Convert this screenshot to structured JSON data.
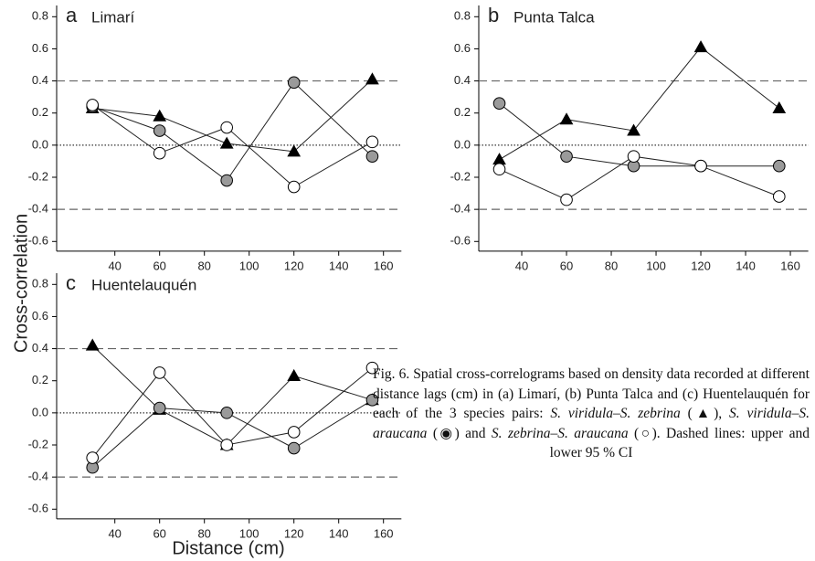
{
  "chart_data": [
    {
      "type": "line",
      "letter": "a",
      "title": "Limarí",
      "x": [
        30,
        60,
        90,
        120,
        155
      ],
      "xlim": [
        14,
        168
      ],
      "xticks": [
        40,
        60,
        80,
        100,
        120,
        140,
        160
      ],
      "ylim": [
        -0.66,
        0.87
      ],
      "yticks": [
        -0.6,
        -0.4,
        -0.2,
        {
          "value": 0,
          "label": "0.0"
        },
        0.2,
        0.4,
        0.6,
        0.8
      ],
      "hlines": [
        {
          "value": 0.4,
          "style": "dashed"
        },
        {
          "value": 0,
          "style": "dotted"
        },
        {
          "value": -0.4,
          "style": "dashed"
        }
      ],
      "series": [
        {
          "marker": "triangle",
          "color": "#000000",
          "values": [
            0.23,
            0.18,
            0.01,
            -0.04,
            0.41
          ]
        },
        {
          "marker": "circle",
          "color": "#9a9a9a",
          "values": [
            0.24,
            0.09,
            -0.22,
            0.39,
            -0.07
          ]
        },
        {
          "marker": "circle",
          "color": "#ffffff",
          "values": [
            0.25,
            -0.05,
            0.11,
            -0.26,
            0.02
          ]
        }
      ]
    },
    {
      "type": "line",
      "letter": "b",
      "title": "Punta Talca",
      "x": [
        30,
        60,
        90,
        120,
        155
      ],
      "xlim": [
        20.8,
        168
      ],
      "xticks": [
        40,
        60,
        80,
        100,
        120,
        140,
        160
      ],
      "ylim": [
        -0.66,
        0.87
      ],
      "yticks": [
        -0.6,
        -0.4,
        -0.2,
        {
          "value": 0,
          "label": "0.0"
        },
        0.2,
        0.4,
        0.6,
        0.8
      ],
      "hlines": [
        {
          "value": 0.4,
          "style": "dashed"
        },
        {
          "value": 0,
          "style": "dotted"
        },
        {
          "value": -0.4,
          "style": "dashed"
        }
      ],
      "series": [
        {
          "marker": "triangle",
          "color": "#000000",
          "values": [
            -0.09,
            0.16,
            0.09,
            0.61,
            0.23
          ]
        },
        {
          "marker": "circle",
          "color": "#9a9a9a",
          "values": [
            0.26,
            -0.07,
            -0.13,
            -0.13,
            -0.13
          ]
        },
        {
          "marker": "circle",
          "color": "#ffffff",
          "values": [
            -0.15,
            -0.34,
            -0.07,
            -0.13,
            -0.32
          ]
        }
      ]
    },
    {
      "type": "line",
      "letter": "c",
      "title": "Huentelauquén",
      "x": [
        30,
        60,
        90,
        120,
        155
      ],
      "xlim": [
        14,
        168
      ],
      "xticks": [
        40,
        60,
        80,
        100,
        120,
        140,
        160
      ],
      "ylim": [
        -0.66,
        0.87
      ],
      "yticks": [
        -0.6,
        -0.4,
        -0.2,
        {
          "value": 0,
          "label": "0.0"
        },
        0.2,
        0.4,
        0.6,
        0.8
      ],
      "hlines": [
        {
          "value": 0.4,
          "style": "dashed"
        },
        {
          "value": 0,
          "style": "dotted"
        },
        {
          "value": -0.4,
          "style": "dashed"
        }
      ],
      "series": [
        {
          "marker": "triangle",
          "color": "#000000",
          "values": [
            0.42,
            0.02,
            -0.2,
            0.23,
            0.08
          ]
        },
        {
          "marker": "circle",
          "color": "#9a9a9a",
          "values": [
            -0.34,
            0.03,
            0.0,
            -0.22,
            0.08
          ]
        },
        {
          "marker": "circle",
          "color": "#ffffff",
          "values": [
            -0.28,
            0.25,
            -0.2,
            -0.12,
            0.28
          ]
        }
      ]
    }
  ],
  "ylabel": "Cross-correlation",
  "xlabel": "Distance (cm)",
  "caption": {
    "runs": [
      {
        "text": "Fig. 6. Spatial cross-correlograms based on density data recorded at different distance lags (cm) in (a) Limarí, (b) Punta Talca and (c) Huentelauquén for each of the 3 species pairs: "
      },
      {
        "text": "S. viridula–S. zebrina",
        "italic": true
      },
      {
        "text": " (▲), "
      },
      {
        "text": "S. viridula–S. araucana",
        "italic": true
      },
      {
        "text": " (◉) and "
      },
      {
        "text": "S. zebrina–S. araucana",
        "italic": true
      },
      {
        "text": " (○). Dashed lines: upper and lower 95 % CI"
      }
    ]
  }
}
